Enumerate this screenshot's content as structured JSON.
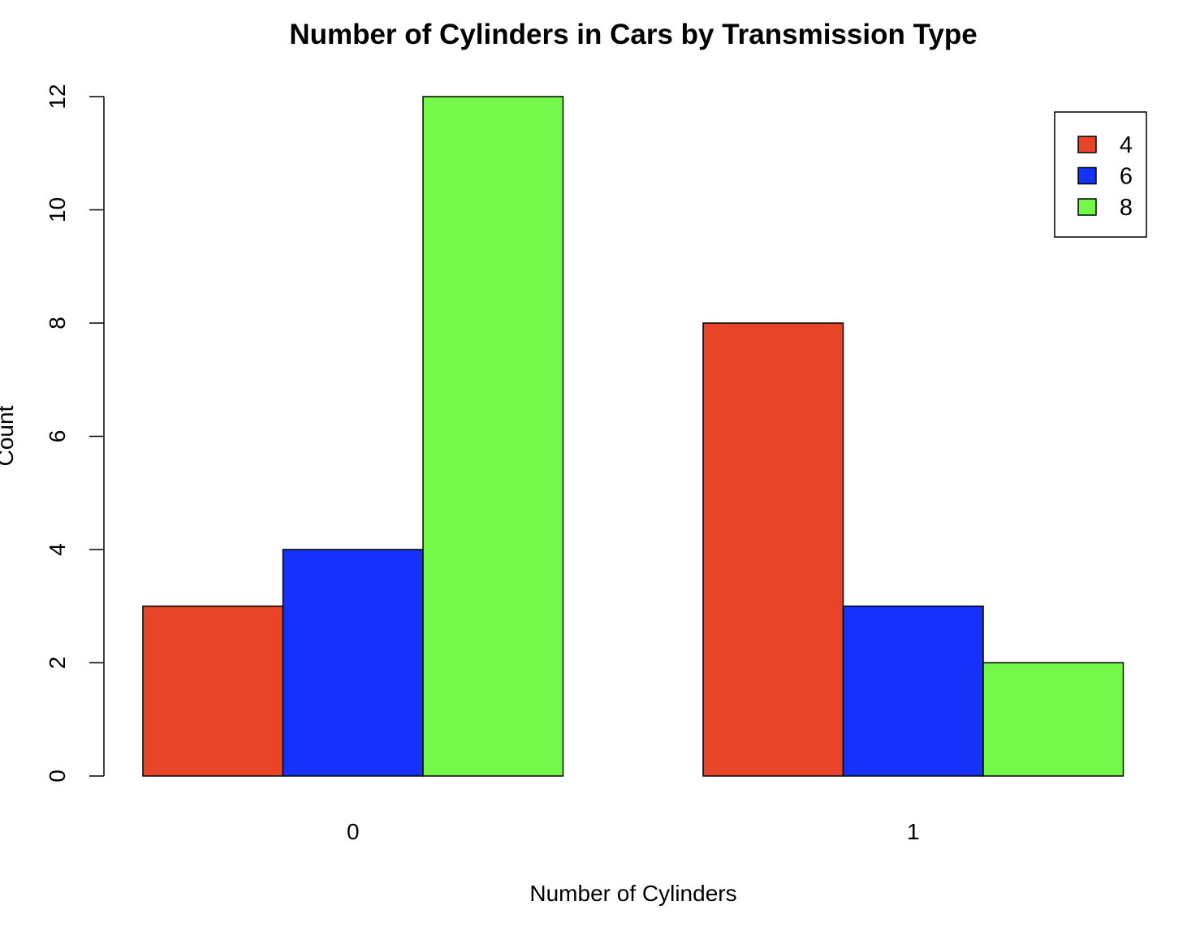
{
  "chart_data": {
    "type": "bar",
    "title": "Number of Cylinders in Cars by Transmission Type",
    "xlabel": "Number of Cylinders",
    "ylabel": "Count",
    "categories": [
      "0",
      "1"
    ],
    "series": [
      {
        "name": "4",
        "values": [
          3,
          8
        ],
        "color": "#E84427"
      },
      {
        "name": "6",
        "values": [
          4,
          3
        ],
        "color": "#1531FA"
      },
      {
        "name": "8",
        "values": [
          12,
          2
        ],
        "color": "#74F94A"
      }
    ],
    "ylim": [
      0,
      12
    ],
    "yticks": [
      0,
      2,
      4,
      6,
      8,
      10,
      12
    ],
    "grid": false,
    "legend_position": "top-right",
    "bar_mode": "grouped"
  }
}
